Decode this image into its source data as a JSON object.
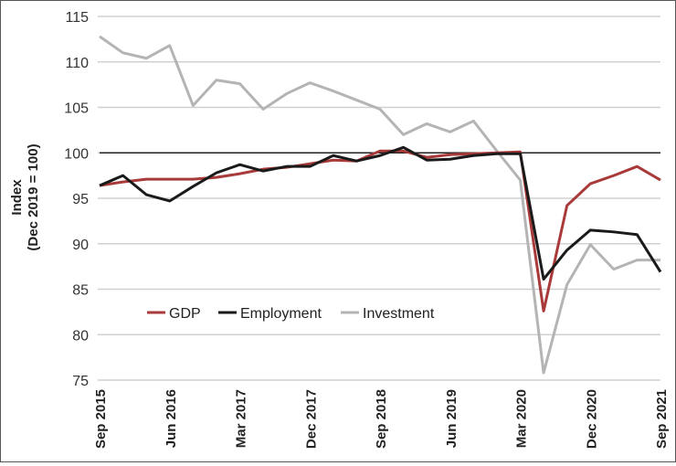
{
  "chart_data": {
    "type": "line",
    "title": "",
    "xlabel": "",
    "ylabel": "Index (Dec 2019 = 100)",
    "ylabel_lines": [
      "Index",
      "(Dec 2019 = 100)"
    ],
    "ylim": [
      75,
      115
    ],
    "yticks": [
      75,
      80,
      85,
      90,
      95,
      100,
      105,
      110,
      115
    ],
    "reference_line": 100,
    "grid": true,
    "legend": "bottom-left",
    "x": [
      "Sep 2015",
      "Dec 2015",
      "Mar 2016",
      "Jun 2016",
      "Sep 2016",
      "Dec 2016",
      "Mar 2017",
      "Jun 2017",
      "Sep 2017",
      "Dec 2017",
      "Mar 2018",
      "Jun 2018",
      "Sep 2018",
      "Dec 2018",
      "Mar 2019",
      "Jun 2019",
      "Sep 2019",
      "Dec 2019",
      "Mar 2020",
      "Jun 2020",
      "Sep 2020",
      "Dec 2020",
      "Mar 2021",
      "Jun 2021",
      "Sep 2021"
    ],
    "xticks": [
      "Sep 2015",
      "Jun 2016",
      "Mar 2017",
      "Dec 2017",
      "Sep 2018",
      "Jun 2019",
      "Mar 2020",
      "Dec 2020",
      "Sep 2021"
    ],
    "series": [
      {
        "name": "GDP",
        "color": "#a83a3a",
        "values": [
          96.4,
          96.8,
          97.1,
          97.1,
          97.1,
          97.3,
          97.7,
          98.2,
          98.4,
          98.8,
          99.2,
          99.1,
          100.2,
          100.2,
          99.5,
          99.8,
          99.9,
          100.0,
          100.1,
          82.6,
          94.2,
          96.6,
          97.5,
          98.5,
          97.0
        ]
      },
      {
        "name": "Employment",
        "color": "#1a1a1a",
        "values": [
          96.4,
          97.5,
          95.4,
          94.7,
          96.3,
          97.8,
          98.7,
          98.0,
          98.5,
          98.5,
          99.7,
          99.1,
          99.7,
          100.6,
          99.2,
          99.3,
          99.7,
          99.9,
          99.9,
          86.1,
          89.3,
          91.5,
          91.3,
          91.0,
          86.9
        ]
      },
      {
        "name": "Investment",
        "color": "#b4b4b4",
        "values": [
          112.8,
          111.0,
          110.4,
          111.8,
          105.2,
          108.0,
          107.6,
          104.8,
          106.5,
          107.7,
          106.8,
          105.8,
          104.8,
          102.0,
          103.2,
          102.3,
          103.5,
          100.2,
          97.0,
          75.8,
          85.5,
          89.9,
          87.2,
          88.2,
          88.2
        ]
      }
    ]
  }
}
